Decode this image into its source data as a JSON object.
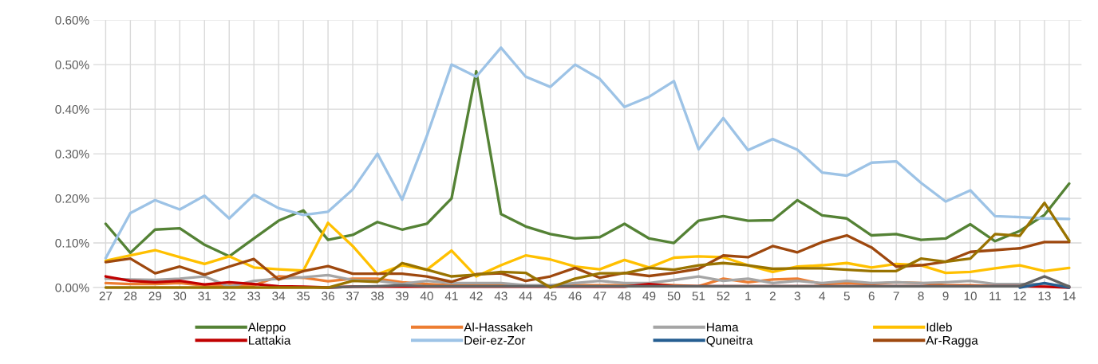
{
  "chart_data": {
    "type": "line",
    "categories": [
      "27",
      "28",
      "29",
      "30",
      "31",
      "32",
      "33",
      "34",
      "35",
      "36",
      "37",
      "38",
      "39",
      "40",
      "41",
      "42",
      "43",
      "44",
      "45",
      "46",
      "47",
      "48",
      "49",
      "50",
      "51",
      "52",
      "1",
      "2",
      "3",
      "4",
      "5",
      "6",
      "7",
      "8",
      "9",
      "10",
      "11",
      "12",
      "13",
      "14"
    ],
    "series": [
      {
        "name": "Aleppo",
        "color": "#548235",
        "values": [
          0.143,
          0.078,
          0.13,
          0.133,
          0.096,
          0.07,
          0.11,
          0.15,
          0.173,
          0.107,
          0.118,
          0.147,
          0.13,
          0.143,
          0.2,
          0.485,
          0.165,
          0.137,
          0.12,
          0.11,
          0.113,
          0.143,
          0.11,
          0.1,
          0.15,
          0.16,
          0.15,
          0.151,
          0.196,
          0.162,
          0.155,
          0.117,
          0.12,
          0.107,
          0.11,
          0.142,
          0.104,
          0.127,
          0.163,
          0.233
        ]
      },
      {
        "name": "Al-Hassakeh",
        "color": "#ed7d31",
        "values": [
          0.01,
          0.008,
          0.008,
          0.01,
          0.005,
          0.005,
          0.005,
          0.025,
          0.022,
          0.014,
          0.02,
          0.02,
          0.012,
          0.008,
          0.005,
          0.005,
          0.005,
          0.003,
          0.003,
          0.005,
          0.005,
          0.005,
          0.008,
          0.005,
          0.003,
          0.02,
          0.012,
          0.018,
          0.02,
          0.008,
          0.01,
          0.008,
          0.012,
          0.01,
          0.005,
          0.005,
          0.003,
          0.003,
          null,
          null
        ]
      },
      {
        "name": "Hama",
        "color": "#a5a5a5",
        "values": [
          0.02,
          0.018,
          0.017,
          0.02,
          0.025,
          0.002,
          0.015,
          0.02,
          0.023,
          0.028,
          0.017,
          0.015,
          0.008,
          0.015,
          0.01,
          0.01,
          0.01,
          0.005,
          0.005,
          0.01,
          0.015,
          0.01,
          0.01,
          0.017,
          0.025,
          0.015,
          0.02,
          0.01,
          0.015,
          0.01,
          0.015,
          0.01,
          0.012,
          0.01,
          0.012,
          0.015,
          0.008,
          0.008,
          0.008,
          0.003
        ]
      },
      {
        "name": "Idleb",
        "color": "#ffc000",
        "values": [
          0.06,
          0.072,
          0.084,
          0.068,
          0.053,
          0.07,
          0.045,
          0.041,
          0.038,
          0.145,
          0.093,
          0.03,
          0.05,
          0.04,
          0.083,
          0.025,
          0.05,
          0.072,
          0.063,
          0.047,
          0.041,
          0.062,
          0.045,
          0.067,
          0.07,
          0.068,
          0.05,
          0.035,
          0.047,
          0.05,
          0.055,
          0.045,
          0.053,
          0.05,
          0.033,
          0.035,
          0.043,
          0.05,
          0.037,
          0.044
        ]
      },
      {
        "name": "Lattakia",
        "color": "#c00000",
        "values": [
          0.025,
          0.015,
          0.012,
          0.015,
          0.007,
          0.012,
          0.008,
          0.003,
          0.002,
          0.0,
          0.002,
          0.002,
          0.002,
          0.002,
          0.002,
          0.002,
          0.002,
          0.002,
          0.002,
          0.002,
          0.002,
          0.002,
          0.008,
          0.003,
          0.003,
          0.003,
          0.003,
          0.003,
          0.003,
          0.003,
          0.003,
          0.003,
          0.003,
          0.003,
          0.003,
          0.003,
          0.003,
          0.003,
          0.002,
          0.0
        ]
      },
      {
        "name": "Deir-ez-Zor",
        "color": "#9dc3e6",
        "values": [
          0.066,
          0.167,
          0.196,
          0.175,
          0.206,
          0.155,
          0.208,
          0.178,
          0.163,
          0.17,
          0.22,
          0.3,
          0.197,
          0.34,
          0.5,
          0.473,
          0.538,
          0.473,
          0.45,
          0.5,
          0.468,
          0.405,
          0.428,
          0.463,
          0.31,
          0.38,
          0.308,
          0.333,
          0.309,
          0.258,
          0.251,
          0.28,
          0.283,
          0.235,
          0.193,
          0.218,
          0.16,
          0.158,
          0.155,
          0.154
        ]
      },
      {
        "name": "Quneitra",
        "color": "#255e91",
        "values": [
          null,
          null,
          null,
          null,
          null,
          null,
          null,
          null,
          null,
          null,
          null,
          null,
          null,
          null,
          null,
          null,
          null,
          null,
          null,
          null,
          null,
          null,
          null,
          null,
          null,
          null,
          null,
          null,
          null,
          null,
          null,
          null,
          null,
          null,
          null,
          null,
          null,
          0.0,
          0.01,
          0.0
        ]
      },
      {
        "name": "Ar-Ragga",
        "color": "#9e480e",
        "values": [
          0.057,
          0.065,
          0.032,
          0.047,
          0.029,
          0.047,
          0.064,
          0.018,
          0.037,
          0.048,
          0.031,
          0.031,
          0.031,
          0.025,
          0.013,
          0.03,
          0.032,
          0.015,
          0.025,
          0.044,
          0.022,
          0.033,
          0.026,
          0.033,
          0.042,
          0.072,
          0.068,
          0.093,
          0.079,
          0.102,
          0.117,
          0.09,
          0.047,
          0.05,
          0.058,
          0.08,
          0.084,
          0.088,
          0.102,
          0.102
        ]
      },
      {
        "color": "#636363",
        "values": [
          null,
          null,
          null,
          null,
          null,
          null,
          null,
          null,
          null,
          0.0,
          0.002,
          0.003,
          0.005,
          0.003,
          0.003,
          0.003,
          0.003,
          0.003,
          0.003,
          0.003,
          0.003,
          0.003,
          0.003,
          0.003,
          0.003,
          0.003,
          0.003,
          0.003,
          0.003,
          0.003,
          0.003,
          0.003,
          0.003,
          0.003,
          0.003,
          0.003,
          0.003,
          0.003,
          0.025,
          0.002
        ]
      },
      {
        "color": "#997300",
        "values": [
          0.0,
          0.0,
          0.0,
          0.0,
          0.0,
          0.0,
          0.0,
          0.0,
          0.0,
          0.0,
          0.015,
          0.013,
          0.055,
          0.04,
          0.025,
          0.029,
          0.035,
          0.033,
          0.0,
          0.02,
          0.032,
          0.032,
          0.044,
          0.04,
          0.05,
          0.055,
          0.05,
          0.042,
          0.043,
          0.043,
          0.04,
          0.037,
          0.037,
          0.065,
          0.058,
          0.065,
          0.12,
          0.116,
          0.19,
          0.105
        ]
      }
    ],
    "ylim": [
      0,
      0.6
    ],
    "yticks": [
      {
        "value": 0,
        "label": "0.00%"
      },
      {
        "value": 0.1,
        "label": "0.10%"
      },
      {
        "value": 0.2,
        "label": "0.20%"
      },
      {
        "value": 0.3,
        "label": "0.30%"
      },
      {
        "value": 0.4,
        "label": "0.40%"
      },
      {
        "value": 0.5,
        "label": "0.50%"
      },
      {
        "value": 0.6,
        "label": "0.60%"
      }
    ],
    "grid": true,
    "legend": "bottom",
    "marker": "none",
    "line_style": "solid"
  }
}
